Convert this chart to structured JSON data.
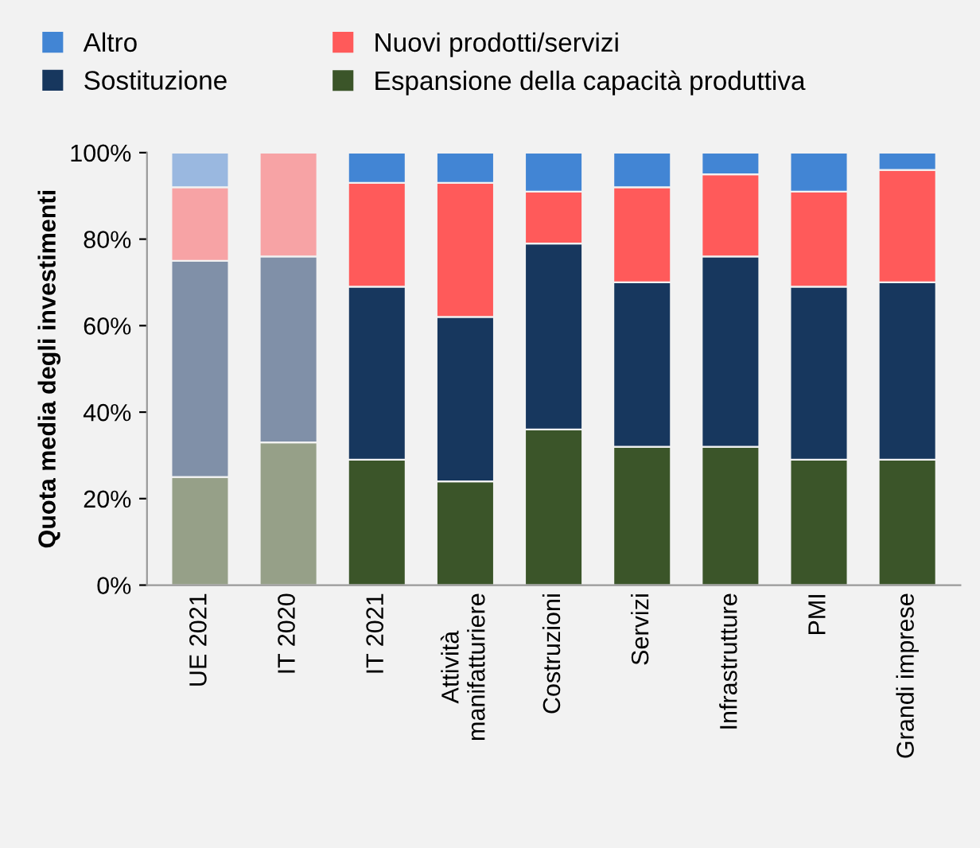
{
  "chart_data": {
    "type": "bar",
    "stacked": true,
    "ylabel": "Quota media degli investimenti",
    "categories": [
      "UE 2021",
      "IT 2020",
      "IT 2021",
      "Attività\nmanifatturiere",
      "Costruzioni",
      "Servizi",
      "Infrastrutture",
      "PMI",
      "Grandi imprese"
    ],
    "series": [
      {
        "name": "Espansione della capacità produttiva",
        "color": "#3b5529",
        "colors": [
          "#96a088",
          "#96a088",
          "#3b5529",
          "#3b5529",
          "#3b5529",
          "#3b5529",
          "#3b5529",
          "#3b5529",
          "#3b5529"
        ],
        "values": [
          25,
          33,
          29,
          24,
          36,
          32,
          32,
          29,
          29
        ]
      },
      {
        "name": "Sostituzione",
        "color": "#17375e",
        "colors": [
          "#8090a8",
          "#8090a8",
          "#17375e",
          "#17375e",
          "#17375e",
          "#17375e",
          "#17375e",
          "#17375e",
          "#17375e"
        ],
        "values": [
          50,
          43,
          40,
          38,
          43,
          38,
          44,
          40,
          41
        ]
      },
      {
        "name": "Nuovi prodotti/servizi",
        "color": "#ff5a5a",
        "colors": [
          "#f7a3a5",
          "#f7a3a5",
          "#ff5a5a",
          "#ff5a5a",
          "#ff5a5a",
          "#ff5a5a",
          "#ff5a5a",
          "#ff5a5a",
          "#ff5a5a"
        ],
        "values": [
          17,
          24,
          24,
          31,
          12,
          22,
          19,
          22,
          26
        ]
      },
      {
        "name": "Altro",
        "color": "#4285d4",
        "colors": [
          "#9ab8e0",
          "#9ab8e0",
          "#4285d4",
          "#4285d4",
          "#4285d4",
          "#4285d4",
          "#4285d4",
          "#4285d4",
          "#4285d4"
        ],
        "values": [
          8,
          null,
          7,
          7,
          9,
          8,
          5,
          9,
          4
        ]
      }
    ],
    "ylim": [
      0,
      100
    ],
    "yticks": [
      {
        "value": 0,
        "label": "0%"
      },
      {
        "value": 20,
        "label": "20%"
      },
      {
        "value": 40,
        "label": "40%"
      },
      {
        "value": 60,
        "label": "60%"
      },
      {
        "value": 80,
        "label": "80%"
      },
      {
        "value": 100,
        "label": "100%"
      }
    ],
    "legend": "top",
    "grid": false
  }
}
